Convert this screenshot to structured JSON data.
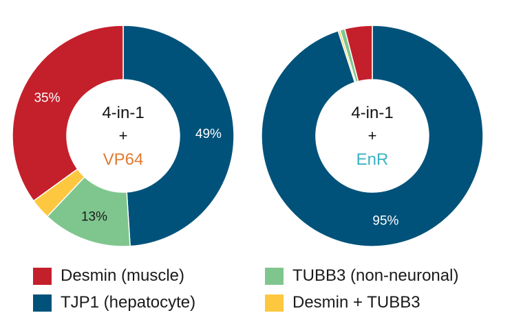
{
  "chart_data": [
    {
      "type": "pie",
      "donut": true,
      "center_label": [
        "4-in-1",
        "+",
        "VP64"
      ],
      "center_accent_color": "#e07a30",
      "slices": [
        {
          "category": "TJP1 (hepatocyte)",
          "value": 49,
          "label": "49%"
        },
        {
          "category": "TUBB3 (non-neuronal)",
          "value": 13,
          "label": "13%"
        },
        {
          "category": "Desmin + TUBB3",
          "value": 3,
          "label": ""
        },
        {
          "category": "Desmin (muscle)",
          "value": 35,
          "label": "35%"
        }
      ]
    },
    {
      "type": "pie",
      "donut": true,
      "center_label": [
        "4-in-1",
        "+",
        "EnR"
      ],
      "center_accent_color": "#3ab3c4",
      "slices": [
        {
          "category": "TJP1 (hepatocyte)",
          "value": 95,
          "label": "95%"
        },
        {
          "category": "Desmin + TUBB3",
          "value": 0.3,
          "label": ""
        },
        {
          "category": "TUBB3 (non-neuronal)",
          "value": 0.7,
          "label": ""
        },
        {
          "category": "Desmin (muscle)",
          "value": 4,
          "label": ""
        }
      ]
    }
  ],
  "legend": {
    "placement": "bottom",
    "items": [
      {
        "label": "Desmin (muscle)",
        "color": "#c4202b"
      },
      {
        "label": "TUBB3 (non-neuronal)",
        "color": "#7fc68e"
      },
      {
        "label": "TJP1 (hepatocyte)",
        "color": "#00527a"
      },
      {
        "label": "Desmin + TUBB3",
        "color": "#fdc840"
      }
    ]
  },
  "colors": {
    "Desmin (muscle)": "#c4202b",
    "TJP1 (hepatocyte)": "#00527a",
    "TUBB3 (non-neuronal)": "#7fc68e",
    "Desmin + TUBB3": "#fdc840"
  }
}
